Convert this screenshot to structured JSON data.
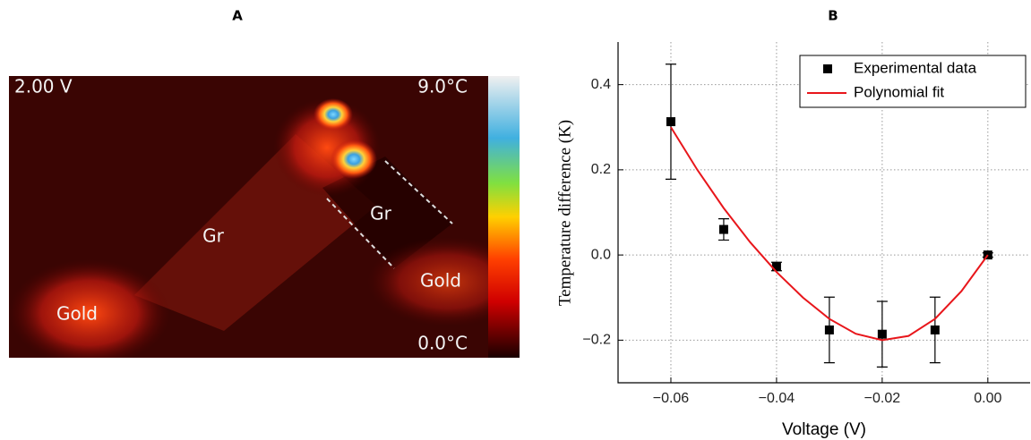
{
  "panel_a": {
    "title": "A",
    "voltage": "2.00 V",
    "scale_max": "9.0°C",
    "scale_min": "0.0°C",
    "labels": [
      "Gr",
      "Gr",
      "Gold",
      "Gold"
    ]
  },
  "chart_data": {
    "type": "scatter",
    "title": "B",
    "xlabel": "Voltage (V)",
    "ylabel": "Temperature difference (K)",
    "xlim": [
      -0.07,
      0.008
    ],
    "ylim": [
      -0.3,
      0.5
    ],
    "xticks": [
      {
        "value": -0.06,
        "label": "−0.06"
      },
      {
        "value": -0.04,
        "label": "−0.04"
      },
      {
        "value": -0.02,
        "label": "−0.02"
      },
      {
        "value": 0,
        "label": "0.00"
      }
    ],
    "yticks": [
      {
        "value": -0.2,
        "label": "−0.2"
      },
      {
        "value": 0,
        "label": "0.0"
      },
      0.2,
      0.4
    ],
    "grid": true,
    "legend": "upper right",
    "series": [
      {
        "name": "Experimental data",
        "color": "#000000",
        "x": [
          -0.06,
          -0.05,
          -0.04,
          -0.03,
          -0.02,
          -0.01,
          0
        ],
        "values": [
          0.313,
          0.06,
          -0.027,
          -0.176,
          -0.186,
          -0.176,
          0.0
        ],
        "errors": [
          0.135,
          0.025,
          0.01,
          0.077,
          0.077,
          0.077,
          0.005
        ]
      },
      {
        "name": "Polynomial fit",
        "color": "#e8161b",
        "x": [
          -0.06,
          -0.055,
          -0.05,
          -0.045,
          -0.04,
          -0.035,
          -0.03,
          -0.025,
          -0.02,
          -0.015,
          -0.01,
          -0.005,
          0
        ],
        "values": [
          0.3,
          0.2,
          0.11,
          0.03,
          -0.04,
          -0.1,
          -0.15,
          -0.185,
          -0.2,
          -0.19,
          -0.15,
          -0.085,
          0.0
        ]
      }
    ]
  }
}
